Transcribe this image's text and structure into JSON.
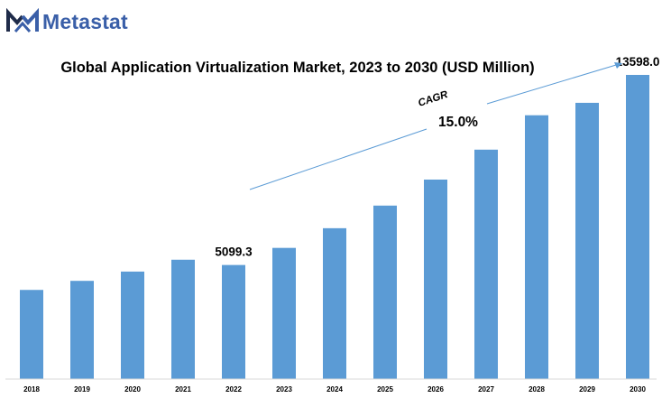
{
  "brand": {
    "name": "Metastat",
    "logo_icon": "metastat-m-logo-icon",
    "colors": {
      "dark": "#1f2b49",
      "blue": "#3a5fa8"
    }
  },
  "chart_data": {
    "type": "bar",
    "title": "Global Application Virtualization Market, 2023 to 2030 (USD Million)",
    "categories": [
      "2018",
      "2019",
      "2020",
      "2021",
      "2022",
      "2023",
      "2024",
      "2025",
      "2026",
      "2027",
      "2028",
      "2029",
      "2030"
    ],
    "values": [
      3985,
      4390,
      4805,
      5335,
      5099.3,
      5864,
      6744,
      7755,
      8918,
      10256,
      11794,
      12350,
      13598.0
    ],
    "bar_color": "#5b9bd5",
    "ylim": [
      0,
      13598.0
    ],
    "grid": false,
    "data_labels": [
      {
        "category": "2022",
        "text": "5099.3"
      },
      {
        "category": "2030",
        "text": "13598.0"
      }
    ],
    "annotations": {
      "cagr_label": "CAGR",
      "cagr_value": "15.0%"
    }
  }
}
